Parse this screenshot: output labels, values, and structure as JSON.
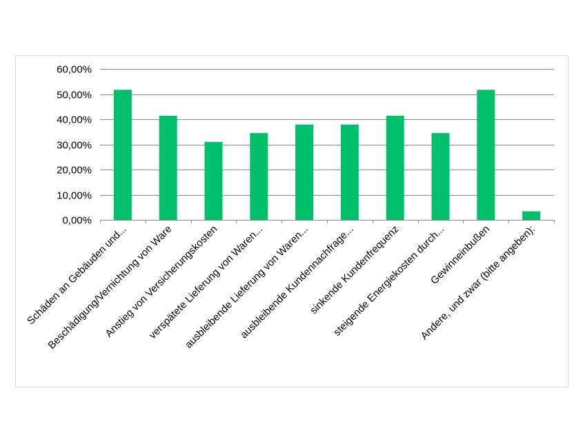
{
  "chart_data": {
    "type": "bar",
    "categories": [
      "Schäden an Gebäuden und...",
      "Beschädigung/Vernichtung von Ware",
      "Anstieg von Versicherungskosten",
      "verspätete Lieferung von Waren...",
      "ausbleibende Lieferung von Waren...",
      "ausbleibende Kundennachfrage...",
      "sinkende Kundenfrequenz",
      "steigende Energiekosten durch...",
      "Gewinneinbußen",
      "Andere, und zwar (bitte angeben):"
    ],
    "values": [
      0.517,
      0.414,
      0.31,
      0.345,
      0.379,
      0.379,
      0.414,
      0.345,
      0.517,
      0.034
    ],
    "y_ticks": [
      "0,00%",
      "10,00%",
      "20,00%",
      "30,00%",
      "40,00%",
      "50,00%",
      "60,00%"
    ],
    "ylim": [
      0,
      0.6
    ],
    "grid": true,
    "legend": "none",
    "bar_color": "#00c06b",
    "grid_color": "#8c8c8c",
    "axis_color": "#8c8c8c"
  }
}
